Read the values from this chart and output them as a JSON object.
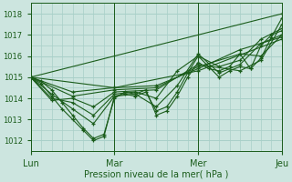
{
  "xlabel": "Pression niveau de la mer( hPa )",
  "xlim": [
    0,
    72
  ],
  "ylim": [
    1011.5,
    1018.5
  ],
  "yticks": [
    1012,
    1013,
    1014,
    1015,
    1016,
    1017,
    1018
  ],
  "day_ticks": [
    0,
    24,
    48,
    72
  ],
  "day_labels": [
    "Lun",
    "Mar",
    "Mer",
    "Jeu"
  ],
  "bg_color": "#cce5df",
  "grid_color": "#a8cfc8",
  "line_color": "#1a5c1a",
  "series": [
    [
      0,
      1015.0,
      3,
      1014.8,
      6,
      1014.4,
      9,
      1013.8,
      12,
      1013.2,
      15,
      1012.6,
      18,
      1012.1,
      21,
      1012.3,
      24,
      1014.0,
      27,
      1014.3,
      30,
      1014.2,
      33,
      1014.4,
      36,
      1013.2,
      39,
      1013.4,
      42,
      1014.1,
      45,
      1015.0,
      48,
      1015.7,
      51,
      1015.4,
      54,
      1015.3,
      57,
      1015.5,
      60,
      1016.1,
      63,
      1015.4,
      66,
      1015.9,
      69,
      1016.9,
      72,
      1017.8
    ],
    [
      0,
      1015.0,
      3,
      1014.7,
      6,
      1014.1,
      9,
      1013.5,
      12,
      1013.0,
      15,
      1012.5,
      18,
      1012.0,
      21,
      1012.2,
      24,
      1014.1,
      27,
      1014.2,
      30,
      1014.1,
      33,
      1014.3,
      36,
      1013.4,
      39,
      1013.6,
      42,
      1014.3,
      45,
      1015.2,
      48,
      1016.0,
      51,
      1015.5,
      54,
      1015.0,
      57,
      1015.3,
      60,
      1015.5,
      63,
      1015.4,
      66,
      1016.5,
      69,
      1017.0,
      72,
      1017.2
    ],
    [
      0,
      1015.0,
      6,
      1014.2,
      12,
      1013.5,
      18,
      1012.8,
      24,
      1014.1,
      30,
      1014.2,
      36,
      1013.6,
      42,
      1014.6,
      48,
      1016.1,
      54,
      1015.2,
      60,
      1015.6,
      66,
      1016.6,
      72,
      1017.0
    ],
    [
      0,
      1015.0,
      6,
      1014.0,
      12,
      1013.8,
      18,
      1013.2,
      24,
      1014.2,
      30,
      1014.3,
      36,
      1014.0,
      42,
      1015.3,
      48,
      1016.0,
      54,
      1015.5,
      60,
      1015.8,
      66,
      1016.8,
      72,
      1017.3
    ],
    [
      0,
      1015.0,
      6,
      1013.9,
      12,
      1014.0,
      18,
      1013.6,
      24,
      1014.3,
      36,
      1014.4,
      48,
      1015.6,
      60,
      1015.3,
      66,
      1015.8,
      72,
      1017.5
    ],
    [
      0,
      1015.0,
      12,
      1014.1,
      24,
      1014.4,
      36,
      1014.5,
      48,
      1015.5,
      60,
      1016.1,
      66,
      1016.0,
      72,
      1017.0
    ],
    [
      0,
      1015.0,
      12,
      1014.3,
      24,
      1014.5,
      36,
      1014.6,
      48,
      1015.4,
      60,
      1016.3,
      72,
      1016.9
    ],
    [
      0,
      1015.0,
      24,
      1014.5,
      48,
      1015.3,
      72,
      1016.8
    ],
    [
      0,
      1015.0,
      72,
      1018.0
    ]
  ],
  "xlabel_fontsize": 7,
  "ytick_fontsize": 6,
  "xtick_fontsize": 7
}
